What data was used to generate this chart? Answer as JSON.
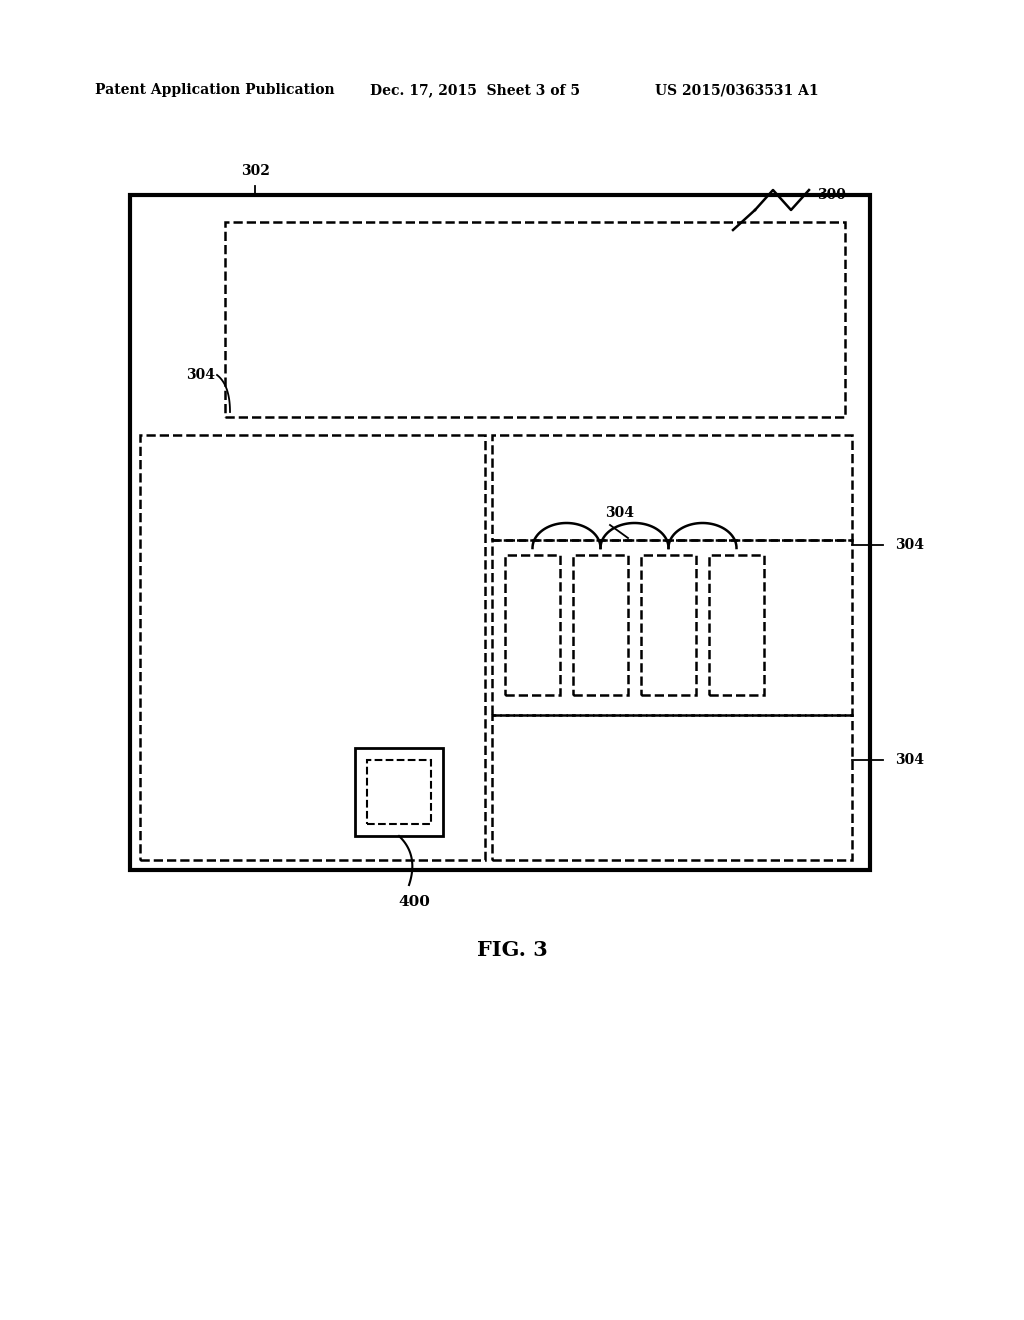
{
  "bg_color": "#ffffff",
  "header_left": "Patent Application Publication",
  "header_mid": "Dec. 17, 2015  Sheet 3 of 5",
  "header_right": "US 2015/0363531 A1",
  "fig_label": "FIG. 3",
  "label_300": "300",
  "label_302": "302",
  "label_304a": "304",
  "label_304b": "304",
  "label_304c": "304",
  "label_304d": "304",
  "label_400": "400"
}
